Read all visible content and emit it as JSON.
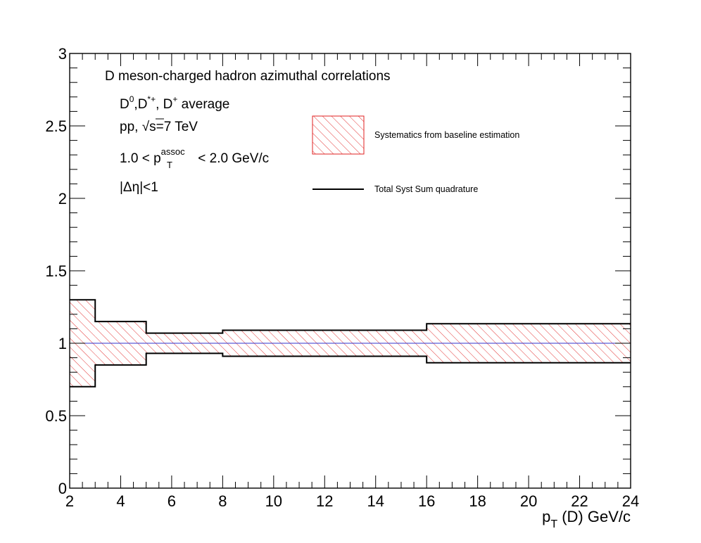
{
  "chart_data": {
    "type": "area",
    "xlabel_main": "p",
    "xlabel_sub": "T",
    "xlabel_rest": " (D) GeV/c",
    "ylabel": "",
    "xlim": [
      2,
      24
    ],
    "ylim": [
      0,
      3
    ],
    "x_ticks": [
      "2",
      "4",
      "6",
      "8",
      "10",
      "12",
      "14",
      "16",
      "18",
      "20",
      "22",
      "24"
    ],
    "y_ticks": [
      "0",
      "0.5",
      "1",
      "1.5",
      "2",
      "2.5",
      "3"
    ],
    "bins": [
      {
        "x_low": 2,
        "x_high": 3,
        "upper": 1.3,
        "lower": 0.7
      },
      {
        "x_low": 3,
        "x_high": 5,
        "upper": 1.15,
        "lower": 0.85
      },
      {
        "x_low": 5,
        "x_high": 8,
        "upper": 1.07,
        "lower": 0.93
      },
      {
        "x_low": 8,
        "x_high": 16,
        "upper": 1.09,
        "lower": 0.91
      },
      {
        "x_low": 16,
        "x_high": 24,
        "upper": 1.135,
        "lower": 0.865
      }
    ],
    "central_line": {
      "y": 1.0,
      "color": "#3333cc"
    },
    "series": [
      {
        "name": "Systematics from baseline estimation",
        "style": "hatched-band",
        "color": "#e02020"
      },
      {
        "name": "Total Syst Sum quadrature",
        "style": "line",
        "color": "#000000"
      }
    ],
    "annotations": {
      "line1": "D meson-charged hadron azimuthal correlations",
      "line2_parts": [
        "D",
        "0",
        ",D",
        "*+",
        ", D",
        "+",
        " average"
      ],
      "line3_parts": [
        "pp, ",
        "√",
        "s",
        "=7 TeV"
      ],
      "line4_parts": [
        "1.0 < p",
        "assoc",
        "T",
        " < 2.0 GeV/c"
      ],
      "line5": "|Δη|<1"
    },
    "grid": false,
    "legend_position": "top-center"
  }
}
